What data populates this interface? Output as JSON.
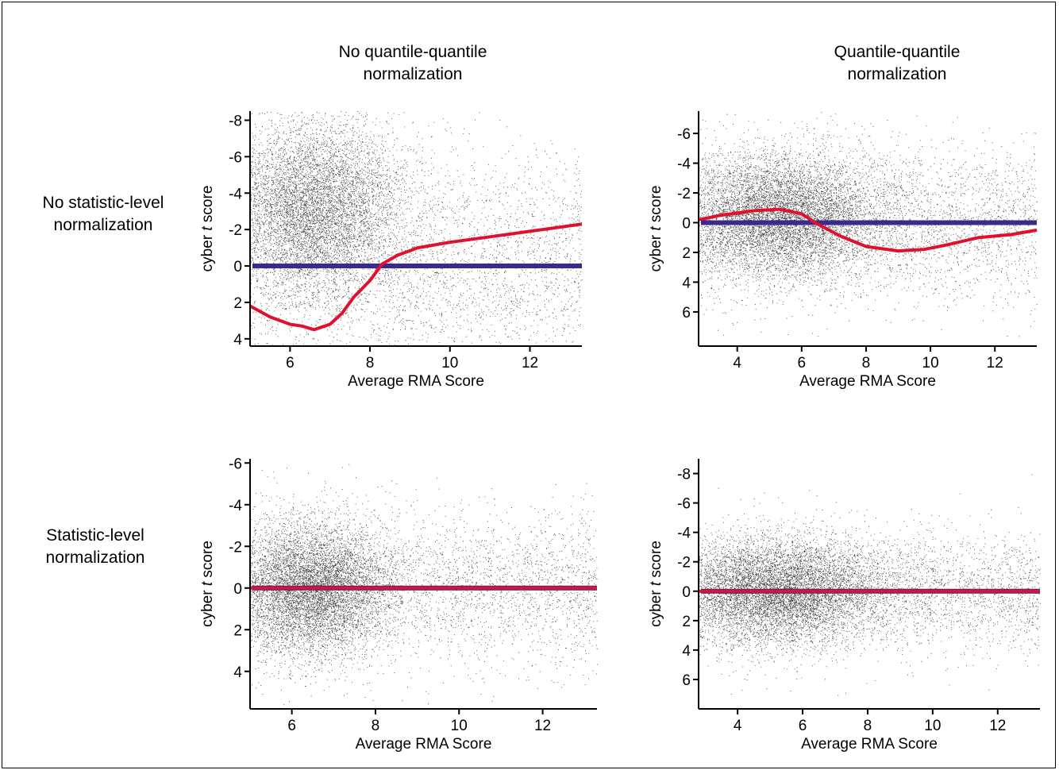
{
  "column_titles": [
    "No quantile-quantile normalization",
    "Quantile-quantile normalization"
  ],
  "row_titles": [
    "No statistic-level normalization",
    "Statistic-level normalization"
  ],
  "colors": {
    "zero_line": "#3b2a8c",
    "trend_line": "#e0102f",
    "points": "#000000"
  },
  "chart_data": [
    {
      "type": "scatter",
      "title": "",
      "column": "No quantile-quantile normalization",
      "row": "No statistic-level normalization",
      "xlabel": "Average RMA Score",
      "ylabel": "cyber t score",
      "ylabel_italic_part": "t",
      "xlim": [
        5,
        13.3
      ],
      "ylim": [
        -8.5,
        4.4
      ],
      "y_inverted": true,
      "xticks": [
        6,
        8,
        10,
        12
      ],
      "yticks": [
        -8,
        -6,
        -4,
        -2,
        0,
        2,
        4
      ],
      "zero_line": {
        "y": 0,
        "x": [
          5,
          13.3
        ]
      },
      "trend": [
        [
          5,
          2.2
        ],
        [
          5.5,
          2.8
        ],
        [
          6,
          3.2
        ],
        [
          6.3,
          3.3
        ],
        [
          6.6,
          3.5
        ],
        [
          7,
          3.2
        ],
        [
          7.3,
          2.6
        ],
        [
          7.6,
          1.7
        ],
        [
          8,
          0.8
        ],
        [
          8.3,
          -0.1
        ],
        [
          8.7,
          -0.6
        ],
        [
          9.2,
          -1.0
        ],
        [
          10,
          -1.3
        ],
        [
          11,
          -1.6
        ],
        [
          12,
          -1.9
        ],
        [
          13.3,
          -2.3
        ]
      ],
      "cloud": {
        "x_center": 6.6,
        "x_spread": 1.1,
        "y_center": -3.3,
        "y_spread": 2.3,
        "n_dense": 7000,
        "n_sparse": 3500,
        "sparse_y_spread": 3.0
      }
    },
    {
      "type": "scatter",
      "title": "",
      "column": "Quantile-quantile normalization",
      "row": "No statistic-level normalization",
      "xlabel": "Average RMA Score",
      "ylabel": "cyber t score",
      "ylabel_italic_part": "t",
      "xlim": [
        2.8,
        13.3
      ],
      "ylim": [
        -7.5,
        8.3
      ],
      "y_inverted": true,
      "xticks": [
        4,
        6,
        8,
        10,
        12
      ],
      "yticks": [
        -6,
        -4,
        -2,
        0,
        2,
        4,
        6
      ],
      "zero_line": {
        "y": 0,
        "x": [
          2.8,
          13.3
        ]
      },
      "trend": [
        [
          2.8,
          -0.2
        ],
        [
          3.5,
          -0.5
        ],
        [
          4.5,
          -0.8
        ],
        [
          5.3,
          -0.9
        ],
        [
          6,
          -0.6
        ],
        [
          6.5,
          0.1
        ],
        [
          7.2,
          0.9
        ],
        [
          8,
          1.6
        ],
        [
          9,
          1.9
        ],
        [
          9.8,
          1.8
        ],
        [
          10.5,
          1.5
        ],
        [
          11.5,
          1.0
        ],
        [
          12.5,
          0.8
        ],
        [
          13.3,
          0.5
        ]
      ],
      "cloud": {
        "x_center": 5.3,
        "x_spread": 1.6,
        "y_center": -0.5,
        "y_spread": 2.0,
        "n_dense": 7500,
        "n_sparse": 3500,
        "sparse_y_spread": 2.6
      }
    },
    {
      "type": "scatter",
      "title": "",
      "column": "No quantile-quantile normalization",
      "row": "Statistic-level normalization",
      "xlabel": "Average RMA Score",
      "ylabel": "cyber t score",
      "ylabel_italic_part": "t",
      "xlim": [
        5,
        13.3
      ],
      "ylim": [
        -6.2,
        5.8
      ],
      "y_inverted": true,
      "xticks": [
        6,
        8,
        10,
        12
      ],
      "yticks": [
        -6,
        -4,
        -2,
        0,
        2,
        4
      ],
      "zero_line": {
        "y": 0,
        "x": [
          5,
          13.3
        ]
      },
      "trend": [
        [
          5,
          0
        ],
        [
          7,
          0
        ],
        [
          9,
          0
        ],
        [
          11,
          0
        ],
        [
          13.3,
          0
        ]
      ],
      "cloud": {
        "x_center": 6.5,
        "x_spread": 0.9,
        "y_center": 0,
        "y_spread": 1.6,
        "n_dense": 7000,
        "n_sparse": 3500,
        "sparse_y_spread": 1.8
      }
    },
    {
      "type": "scatter",
      "title": "",
      "column": "Quantile-quantile normalization",
      "row": "Statistic-level normalization",
      "xlabel": "Average RMA Score",
      "ylabel": "cyber t score",
      "ylabel_italic_part": "t",
      "xlim": [
        2.8,
        13.3
      ],
      "ylim": [
        -9,
        8
      ],
      "y_inverted": true,
      "xticks": [
        4,
        6,
        8,
        10,
        12
      ],
      "yticks": [
        -8,
        -6,
        -4,
        -2,
        0,
        2,
        4,
        6
      ],
      "zero_line": {
        "y": 0,
        "x": [
          2.8,
          13.3
        ]
      },
      "trend": [
        [
          2.8,
          0
        ],
        [
          6,
          0
        ],
        [
          9,
          0
        ],
        [
          11.5,
          0
        ],
        [
          13.3,
          0
        ]
      ],
      "cloud": {
        "x_center": 5.2,
        "x_spread": 1.6,
        "y_center": 0,
        "y_spread": 1.8,
        "n_dense": 7500,
        "n_sparse": 3500,
        "sparse_y_spread": 2.0
      }
    }
  ]
}
